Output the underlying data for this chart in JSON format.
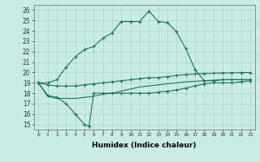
{
  "xlabel": "Humidex (Indice chaleur)",
  "bg_color": "#c8ece4",
  "grid_color": "#aad4cc",
  "line_color": "#1a7060",
  "xlim": [
    -0.5,
    23.5
  ],
  "ylim": [
    14.5,
    26.5
  ],
  "xticks": [
    0,
    1,
    2,
    3,
    4,
    5,
    6,
    7,
    8,
    9,
    10,
    11,
    12,
    13,
    14,
    15,
    16,
    17,
    18,
    19,
    20,
    21,
    22,
    23
  ],
  "yticks": [
    15,
    16,
    17,
    18,
    19,
    20,
    21,
    22,
    23,
    24,
    25,
    26
  ],
  "lines": [
    {
      "x": [
        0,
        1,
        2,
        3,
        4,
        5,
        6,
        7,
        8,
        9,
        10,
        11,
        12,
        13,
        14,
        15,
        16,
        17,
        18,
        19,
        20,
        21,
        22,
        23
      ],
      "y": [
        19,
        19.0,
        19.3,
        20.5,
        21.5,
        22.2,
        22.5,
        23.3,
        23.8,
        24.9,
        24.9,
        24.9,
        25.9,
        24.9,
        24.8,
        23.9,
        22.3,
        20.3,
        19.2,
        19.2,
        19.3,
        19.3,
        19.3,
        19.3
      ],
      "markers": true
    },
    {
      "x": [
        0,
        1,
        2,
        3,
        4,
        5,
        6,
        7,
        8,
        9,
        10,
        11,
        12,
        13,
        14,
        15,
        16,
        17,
        18,
        19,
        20,
        21,
        22,
        23
      ],
      "y": [
        19.0,
        18.8,
        18.7,
        18.7,
        18.7,
        18.8,
        18.9,
        19.0,
        19.1,
        19.2,
        19.3,
        19.4,
        19.5,
        19.5,
        19.6,
        19.7,
        19.8,
        19.85,
        19.9,
        19.92,
        19.95,
        19.97,
        19.98,
        19.99
      ],
      "markers": true
    },
    {
      "x": [
        0,
        1,
        2,
        3,
        4,
        5,
        6,
        7,
        8,
        9,
        10,
        11,
        12,
        13,
        14,
        15,
        16,
        17,
        18,
        19,
        20,
        21,
        22,
        23
      ],
      "y": [
        19.0,
        17.7,
        17.5,
        17.5,
        17.5,
        17.6,
        17.7,
        17.9,
        18.0,
        18.2,
        18.4,
        18.6,
        18.7,
        18.8,
        18.9,
        19.0,
        19.1,
        19.15,
        19.2,
        19.25,
        19.3,
        19.3,
        19.3,
        19.3
      ],
      "markers": false
    },
    {
      "x": [
        0,
        1,
        2,
        3,
        4,
        5,
        5.5,
        6,
        7,
        8,
        9,
        10,
        11,
        12,
        13,
        14,
        15,
        16,
        17,
        18,
        19,
        20,
        21,
        22,
        23
      ],
      "y": [
        19,
        17.8,
        17.6,
        17.0,
        16.0,
        15.0,
        14.8,
        18.0,
        18.0,
        18.0,
        18.0,
        18.0,
        18.0,
        18.0,
        18.1,
        18.2,
        18.3,
        18.5,
        18.7,
        18.9,
        19.0,
        19.0,
        19.0,
        19.1,
        19.2
      ],
      "markers": true
    }
  ]
}
